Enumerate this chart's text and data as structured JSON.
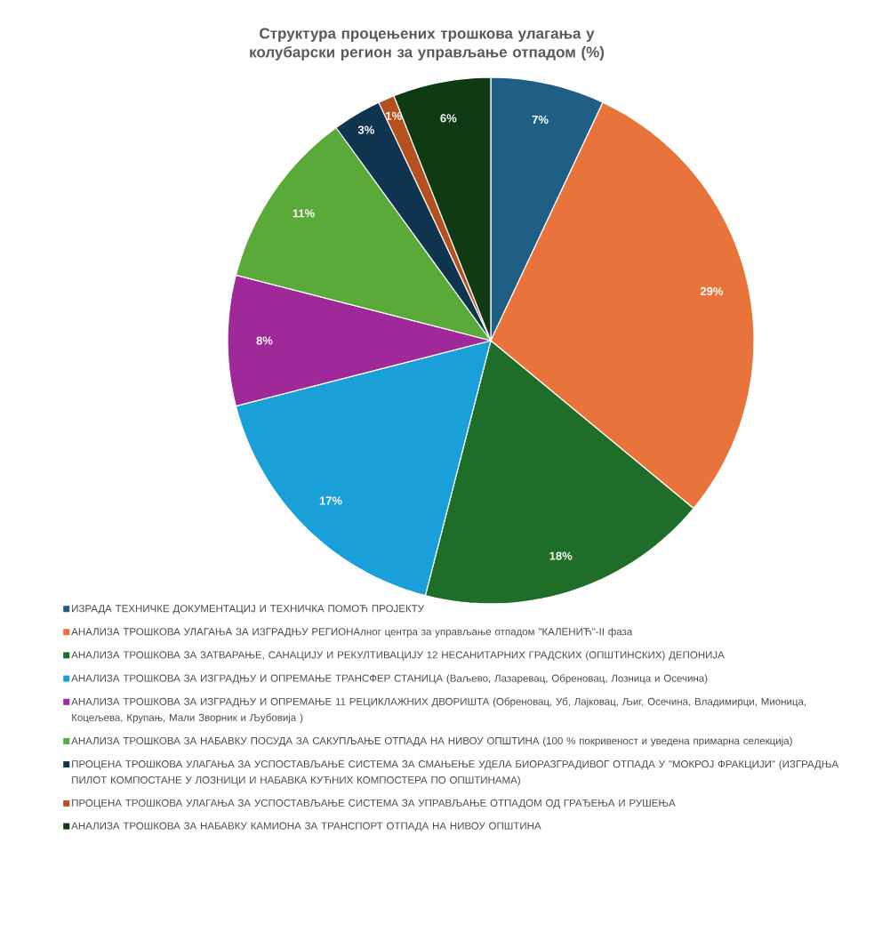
{
  "chart_data": {
    "type": "pie",
    "title": "Структура процењених трошкова улагања у колубарски регион за управљање отпадом (%)",
    "categories": [
      "ИЗРАДА ТЕХНИЧКЕ ДОКУМЕНТАЦИЈ И ТЕХНИЧКА ПОМОЋ ПРОЈЕКТУ",
      "АНАЛИЗА ТРОШКОВА УЛАГАЊА ЗА ИЗГРАДЊУ РЕГИОНАлног центра за управљање отпадом \"КАЛЕНИЋ\"-II фаза",
      "АНАЛИЗА ТРОШКОВА ЗА ЗАТВАРАЊЕ, САНАЦИЈУ И РЕКУЛТИВАЦИЈУ 12 НЕСАНИТАРНИХ ГРАДСКИХ (ОПШТИНСКИХ) ДЕПОНИЈА",
      "АНАЛИЗА ТРОШКОВА ЗА ИЗГРАДЊУ И ОПРЕМАЊЕ ТРАНСФЕР СТАНИЦА (Ваљево, Лазаревац, Обреновац, Лозница и Осечина)",
      "АНАЛИЗА ТРОШКОВА ЗА ИЗГРАДЊУ И ОПРЕМАЊЕ 11 РЕЦИКЛАЖНИХ ДВОРИШТА (Обреновац, Уб, Лајковац, Љиг, Осечина, Владимирци, Мионица, Коцељева, Крупањ, Мали Зворник и Љубовија )",
      "АНАЛИЗА ТРОШКОВА ЗА НАБАВКУ ПОСУДА ЗА САКУПЉАЊЕ ОТПАДА НА НИВОУ ОПШТИНА (100 % покривеност и уведена примарна селекција)",
      "ПРОЦЕНА ТРОШКОВА УЛАГАЊА ЗА УСПОСТАВЉАЊЕ СИСТЕМА ЗА СМАЊЕЊЕ УДЕЛА БИОРАЗГРАДИВОГ ОТПАДА У \"МОКРОЈ ФРАКЦИЈИ\" (ИЗГРАДЊА ПИЛОТ КОМПОСТАНЕ У ЛОЗНИЦИ И НАБАВКА КУЋНИХ КОМПОСТЕРА ПО ОПШТИНАМА)",
      "ПРОЦЕНА ТРОШКОВА УЛАГАЊА ЗА УСПОСТАВЉАЊЕ СИСТЕМА ЗА УПРАВЉАЊЕ ОТПАДОМ ОД ГРАЂЕЊА И РУШЕЊА",
      "АНАЛИЗА ТРОШКОВА ЗА НАБАВКУ КАМИОНА ЗА ТРАНСПОРТ ОТПАДА НА НИВОУ ОПШТИНА"
    ],
    "values": [
      7,
      29,
      18,
      17,
      8,
      11,
      3,
      1,
      6
    ],
    "value_labels": [
      "7%",
      "29%",
      "18%",
      "17%",
      "8%",
      "11%",
      "3%",
      "1%",
      "6%"
    ],
    "colors": [
      "#1f5f86",
      "#e8743b",
      "#1e6e2a",
      "#1aa0d8",
      "#a0299a",
      "#5aaa3a",
      "#0f3450",
      "#b5501f",
      "#103a14"
    ],
    "legend": "bottom"
  }
}
